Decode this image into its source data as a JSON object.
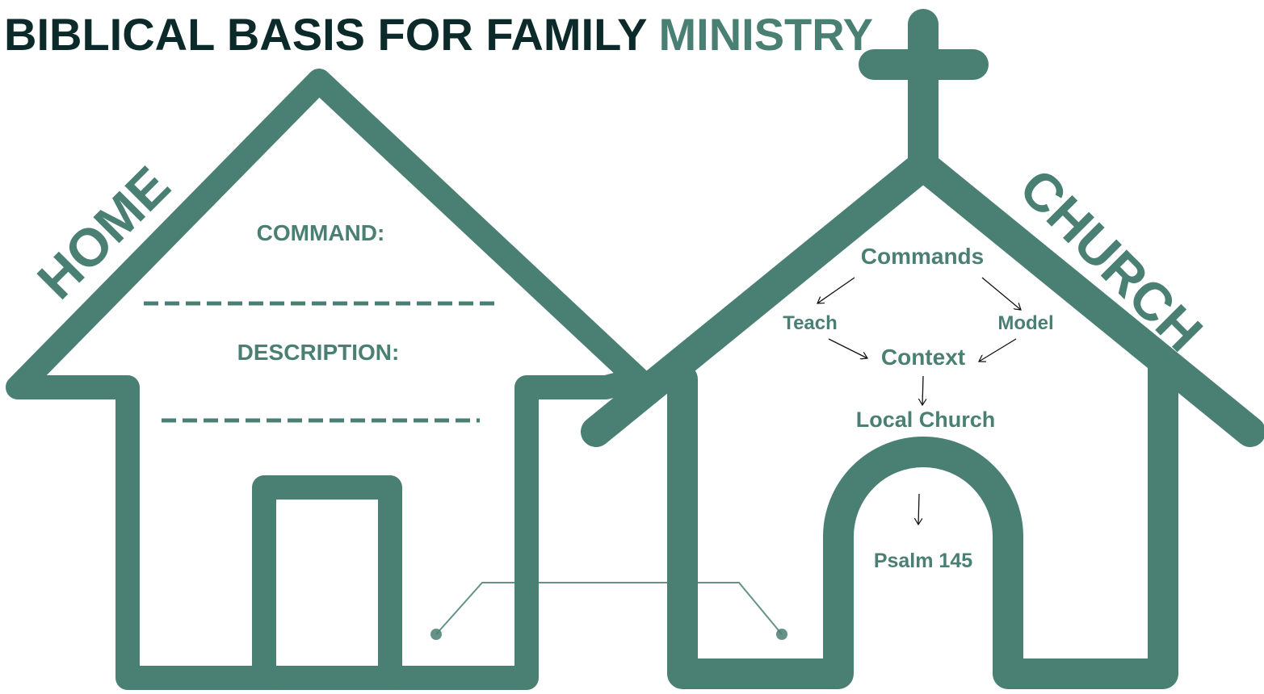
{
  "header": {
    "title": "BIBLICAL BASIS FOR FAMILY",
    "title_accent": "MINISTRY"
  },
  "home": {
    "label": "HOME",
    "fields": [
      "COMMAND:",
      "DESCRIPTION:"
    ]
  },
  "church": {
    "label": "CHURCH",
    "nodes": [
      "Commands",
      "Teach",
      "Model",
      "Context",
      "Local Church",
      "Psalm 145"
    ]
  }
}
